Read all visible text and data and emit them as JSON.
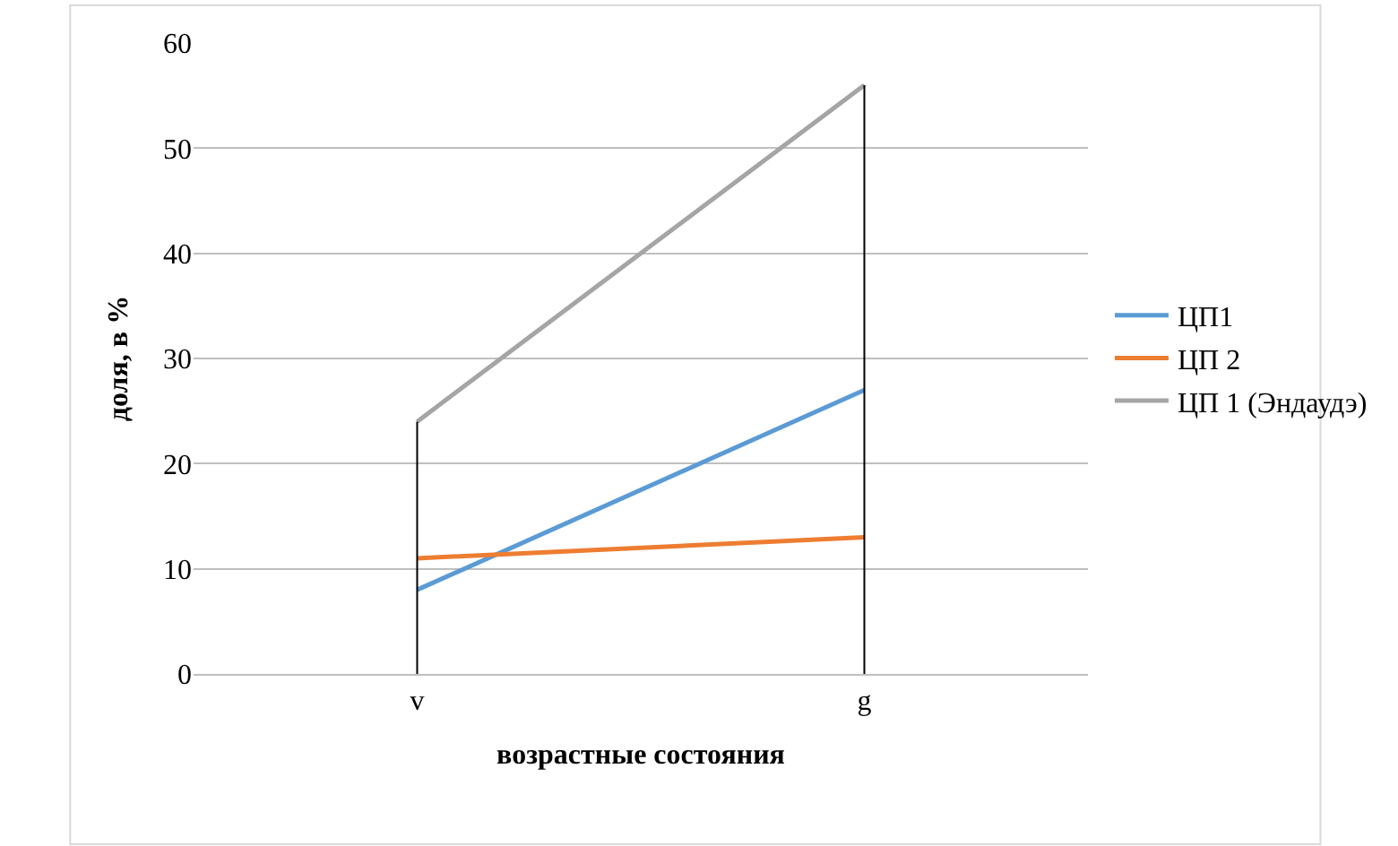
{
  "chart_data": {
    "type": "line",
    "xlabel": "возрастные состояния",
    "ylabel": "доля, в %",
    "categories": [
      "v",
      "g"
    ],
    "series": [
      {
        "name": "ЦП1",
        "color": "#5b9bd5",
        "values": [
          8,
          27
        ]
      },
      {
        "name": "ЦП 2",
        "color": "#ed7d31",
        "values": [
          11,
          13
        ]
      },
      {
        "name": "ЦП 1 (Эндаудэ)",
        "color": "#a5a5a5",
        "values": [
          24,
          56
        ]
      }
    ],
    "ref_lines": [
      {
        "axis": "x",
        "value": "v",
        "color": "#000000"
      },
      {
        "axis": "x",
        "value": "g",
        "color": "#000000"
      }
    ],
    "ylim": [
      0,
      60
    ],
    "yticks": [
      0,
      10,
      20,
      30,
      40,
      50,
      60
    ],
    "grid": "y",
    "legend": "right",
    "marker": "none",
    "line_style": "solid"
  }
}
